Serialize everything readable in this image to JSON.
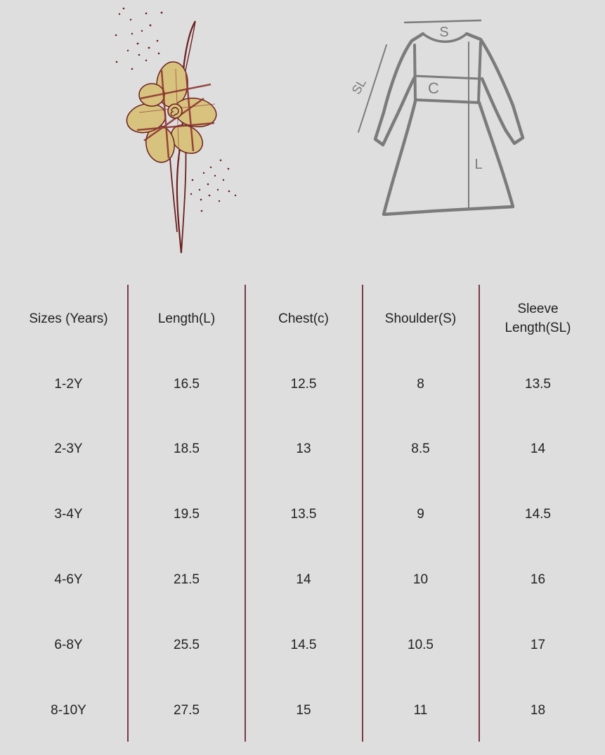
{
  "illustration": {
    "flower_icon": "plaid-flower-icon",
    "diagram_icon": "dress-measurement-diagram-icon",
    "diagram_labels": {
      "shoulder": "S",
      "chest": "C",
      "length": "L",
      "sleeve_length": "SL"
    },
    "colors": {
      "background": "#dedede",
      "accent": "#7a3a46",
      "flower_fill": "#d8c37e",
      "sketch": "#7b7b7b"
    }
  },
  "size_table": {
    "headers": [
      "Sizes (Years)",
      "Length(L)",
      "Chest(c)",
      "Shoulder(S)",
      "Sleeve Length(SL)"
    ],
    "header_sleeve_line1": "Sleeve",
    "header_sleeve_line2": "Length(SL)",
    "rows": [
      [
        "1-2Y",
        "16.5",
        "12.5",
        "8",
        "13.5"
      ],
      [
        "2-3Y",
        "18.5",
        "13",
        "8.5",
        "14"
      ],
      [
        "3-4Y",
        "19.5",
        "13.5",
        "9",
        "14.5"
      ],
      [
        "4-6Y",
        "21.5",
        "14",
        "10",
        "16"
      ],
      [
        "6-8Y",
        "25.5",
        "14.5",
        "10.5",
        "17"
      ],
      [
        "8-10Y",
        "27.5",
        "15",
        "11",
        "18"
      ]
    ]
  }
}
